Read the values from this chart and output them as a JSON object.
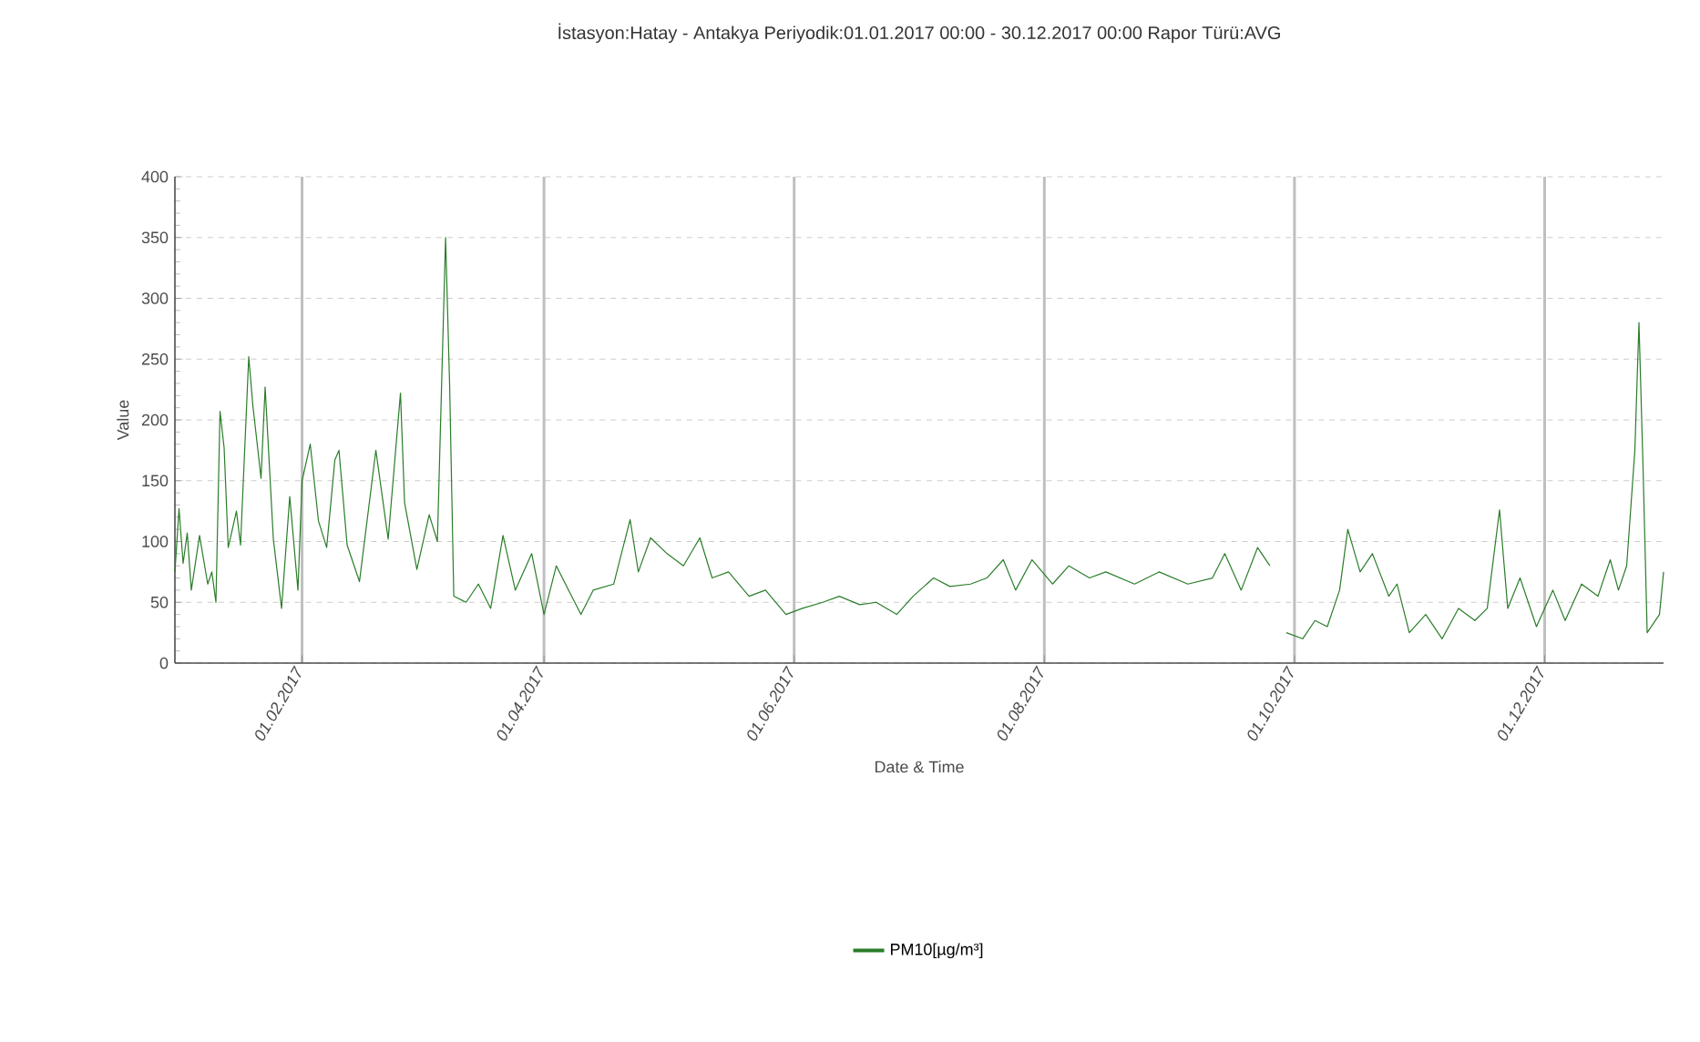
{
  "chart_data": {
    "type": "line",
    "title": "İstasyon:Hatay - Antakya Periyodik:01.01.2017 00:00 - 30.12.2017 00:00 Rapor Türü:AVG",
    "xlabel": "Date & Time",
    "ylabel": "Value",
    "x": [
      "2017-01-01",
      "2017-01-02",
      "2017-01-03",
      "2017-01-04",
      "2017-01-05",
      "2017-01-07",
      "2017-01-09",
      "2017-01-10",
      "2017-01-11",
      "2017-01-12",
      "2017-01-13",
      "2017-01-14",
      "2017-01-16",
      "2017-01-17",
      "2017-01-19",
      "2017-01-20",
      "2017-01-22",
      "2017-01-23",
      "2017-01-25",
      "2017-01-27",
      "2017-01-29",
      "2017-01-31",
      "2017-02-01",
      "2017-02-03",
      "2017-02-05",
      "2017-02-07",
      "2017-02-09",
      "2017-02-10",
      "2017-02-12",
      "2017-02-15",
      "2017-02-19",
      "2017-02-22",
      "2017-02-25",
      "2017-02-26",
      "2017-03-01",
      "2017-03-04",
      "2017-03-06",
      "2017-03-08",
      "2017-03-09",
      "2017-03-10",
      "2017-03-13",
      "2017-03-16",
      "2017-03-19",
      "2017-03-22",
      "2017-03-25",
      "2017-03-29",
      "2017-04-01",
      "2017-04-04",
      "2017-04-07",
      "2017-04-10",
      "2017-04-13",
      "2017-04-18",
      "2017-04-22",
      "2017-04-24",
      "2017-04-27",
      "2017-05-01",
      "2017-05-05",
      "2017-05-09",
      "2017-05-12",
      "2017-05-16",
      "2017-05-21",
      "2017-05-25",
      "2017-05-30",
      "2017-06-03",
      "2017-06-08",
      "2017-06-12",
      "2017-06-17",
      "2017-06-21",
      "2017-06-26",
      "2017-06-30",
      "2017-07-05",
      "2017-07-09",
      "2017-07-14",
      "2017-07-18",
      "2017-07-22",
      "2017-07-25",
      "2017-07-29",
      "2017-08-03",
      "2017-08-07",
      "2017-08-12",
      "2017-08-16",
      "2017-08-23",
      "2017-08-29",
      "2017-09-05",
      "2017-09-11",
      "2017-09-14",
      "2017-09-18",
      "2017-09-22",
      "2017-09-25",
      "2017-09-27",
      "2017-09-29",
      "2017-10-03",
      "2017-10-06",
      "2017-10-09",
      "2017-10-12",
      "2017-10-14",
      "2017-10-17",
      "2017-10-20",
      "2017-10-24",
      "2017-10-26",
      "2017-10-29",
      "2017-11-02",
      "2017-11-06",
      "2017-11-10",
      "2017-11-14",
      "2017-11-17",
      "2017-11-20",
      "2017-11-22",
      "2017-11-25",
      "2017-11-29",
      "2017-12-03",
      "2017-12-06",
      "2017-12-10",
      "2017-12-14",
      "2017-12-17",
      "2017-12-19",
      "2017-12-21",
      "2017-12-23",
      "2017-12-24",
      "2017-12-25",
      "2017-12-26",
      "2017-12-29",
      "2017-12-30"
    ],
    "series": [
      {
        "name": "PM10[µg/m³]",
        "color": "#2a7d2a",
        "values": [
          75,
          127,
          82,
          107,
          60,
          105,
          65,
          75,
          50,
          207,
          177,
          95,
          125,
          97,
          252,
          212,
          152,
          227,
          102,
          45,
          137,
          60,
          150,
          180,
          117,
          95,
          167,
          175,
          97,
          67,
          175,
          102,
          222,
          132,
          77,
          122,
          100,
          350,
          227,
          55,
          50,
          65,
          45,
          105,
          60,
          90,
          40,
          80,
          60,
          40,
          60,
          65,
          118,
          75,
          103,
          90,
          80,
          103,
          70,
          75,
          55,
          60,
          40,
          45,
          50,
          55,
          48,
          50,
          40,
          55,
          70,
          63,
          65,
          70,
          85,
          60,
          85,
          65,
          80,
          70,
          75,
          65,
          75,
          65,
          70,
          90,
          60,
          95,
          80,
          null,
          25,
          20,
          35,
          30,
          60,
          110,
          75,
          90,
          55,
          65,
          25,
          40,
          20,
          45,
          35,
          45,
          126,
          45,
          70,
          30,
          60,
          35,
          65,
          55,
          85,
          60,
          80,
          175,
          280,
          160,
          25,
          40,
          75
        ]
      }
    ],
    "xlim": [
      "2017-01-01",
      "2017-12-30"
    ],
    "xticks": [
      {
        "value": "2017-02-01",
        "label": "01.02.2017"
      },
      {
        "value": "2017-04-01",
        "label": "01.04.2017"
      },
      {
        "value": "2017-06-01",
        "label": "01.06.2017"
      },
      {
        "value": "2017-08-01",
        "label": "01.08.2017"
      },
      {
        "value": "2017-10-01",
        "label": "01.10.2017"
      },
      {
        "value": "2017-12-01",
        "label": "01.12.2017"
      }
    ],
    "ylim": [
      0,
      400
    ],
    "yticks": [
      0,
      50,
      100,
      150,
      200,
      250,
      300,
      350,
      400
    ],
    "grid": true,
    "legend": "bottom",
    "marker": "none",
    "line_style": "solid"
  }
}
